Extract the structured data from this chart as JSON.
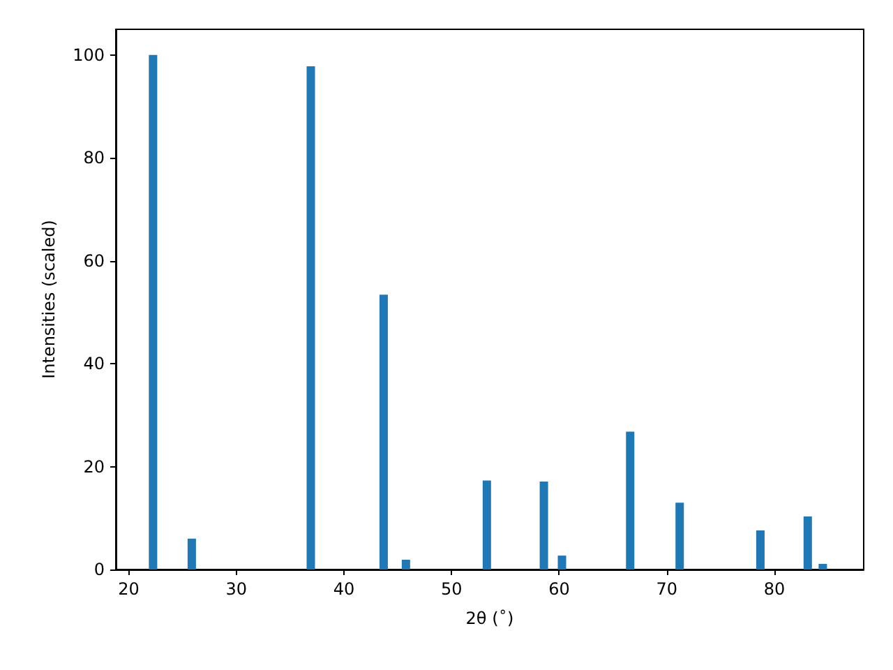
{
  "chart_data": {
    "type": "bar",
    "xlabel": "2θ ($^{∘}$)",
    "ylabel": "Intensities (scaled)",
    "x": [
      22.26,
      25.86,
      36.92,
      43.69,
      45.76,
      53.28,
      58.58,
      60.26,
      66.6,
      71.2,
      78.7,
      83.1,
      84.5
    ],
    "values": [
      100,
      6.0,
      97.8,
      53.4,
      1.9,
      17.3,
      17.1,
      2.7,
      26.8,
      13.0,
      7.6,
      10.3,
      1.1
    ],
    "color": "#1f77b4",
    "xlim": [
      18.8,
      88.3
    ],
    "xticks": [
      20,
      30,
      40,
      50,
      60,
      70,
      80
    ],
    "ylim": [
      0,
      105
    ],
    "yticks": [
      0,
      20,
      40,
      60,
      80,
      100
    ],
    "grid": false
  }
}
